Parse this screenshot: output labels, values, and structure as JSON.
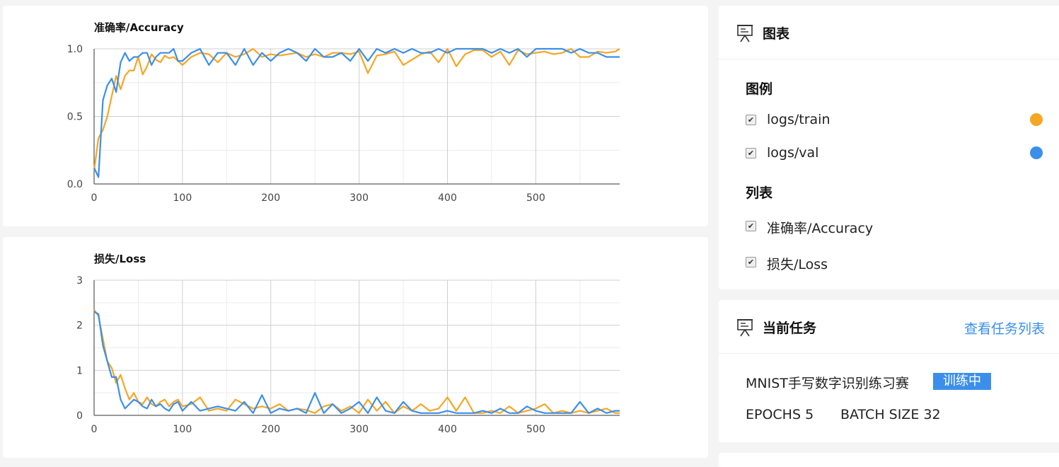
{
  "charts": [
    {
      "id": "accuracy",
      "title": "准确率/Accuracy",
      "type": "line",
      "xlim": [
        0,
        595
      ],
      "ylim": [
        0,
        1
      ],
      "x_ticks": [
        0,
        100,
        200,
        300,
        400,
        500
      ],
      "y_ticks": [
        0.0,
        0.5,
        1.0
      ],
      "y_tick_labels": [
        "0.0",
        "0.5",
        "1.0"
      ],
      "x_tick_labels": [
        "0",
        "100",
        "200",
        "300",
        "400",
        "500"
      ],
      "grid": true,
      "series": [
        {
          "color": "#f5a623",
          "x": [
            0,
            5,
            10,
            15,
            20,
            25,
            30,
            35,
            40,
            45,
            50,
            55,
            60,
            65,
            70,
            75,
            80,
            85,
            90,
            95,
            100,
            110,
            120,
            130,
            140,
            150,
            160,
            170,
            180,
            190,
            200,
            210,
            220,
            230,
            240,
            250,
            260,
            270,
            280,
            290,
            300,
            310,
            320,
            330,
            340,
            350,
            360,
            370,
            380,
            390,
            400,
            410,
            420,
            430,
            440,
            450,
            460,
            470,
            480,
            490,
            500,
            510,
            520,
            530,
            540,
            550,
            560,
            570,
            580,
            590,
            595
          ],
          "y": [
            0.1,
            0.34,
            0.4,
            0.5,
            0.65,
            0.8,
            0.7,
            0.8,
            0.84,
            0.84,
            0.94,
            0.81,
            0.87,
            0.96,
            0.92,
            0.9,
            0.95,
            0.93,
            0.94,
            0.91,
            0.88,
            0.94,
            0.97,
            0.96,
            0.9,
            0.97,
            0.94,
            0.96,
            1.0,
            0.94,
            0.96,
            0.95,
            0.96,
            0.97,
            0.94,
            0.96,
            0.94,
            0.97,
            0.97,
            0.96,
            0.98,
            0.82,
            0.95,
            0.96,
            0.98,
            0.88,
            0.92,
            0.96,
            0.98,
            0.9,
            1.0,
            0.87,
            0.96,
            0.99,
            0.99,
            0.94,
            0.98,
            0.88,
            0.99,
            0.96,
            0.97,
            0.98,
            0.96,
            0.97,
            1.0,
            0.94,
            0.94,
            0.98,
            0.97,
            0.98,
            1.0
          ]
        },
        {
          "color": "#3b8fea",
          "x": [
            0,
            5,
            10,
            15,
            20,
            25,
            30,
            35,
            40,
            45,
            50,
            55,
            60,
            65,
            70,
            75,
            80,
            85,
            90,
            95,
            100,
            110,
            120,
            130,
            140,
            150,
            160,
            170,
            180,
            190,
            200,
            210,
            220,
            230,
            240,
            250,
            260,
            270,
            280,
            290,
            300,
            310,
            320,
            330,
            340,
            350,
            360,
            370,
            380,
            390,
            400,
            410,
            420,
            430,
            440,
            450,
            460,
            470,
            480,
            490,
            500,
            510,
            520,
            530,
            540,
            550,
            560,
            570,
            580,
            590,
            595
          ],
          "y": [
            0.12,
            0.05,
            0.62,
            0.73,
            0.78,
            0.68,
            0.9,
            0.97,
            0.91,
            0.94,
            0.94,
            0.97,
            0.97,
            0.88,
            0.94,
            0.97,
            0.97,
            0.97,
            1.0,
            0.91,
            0.91,
            0.97,
            1.0,
            0.88,
            0.97,
            0.97,
            0.88,
            1.0,
            0.88,
            0.97,
            0.91,
            0.97,
            1.0,
            0.97,
            0.91,
            1.0,
            0.94,
            0.94,
            0.97,
            0.91,
            1.0,
            0.91,
            1.0,
            0.97,
            1.0,
            0.97,
            1.0,
            0.97,
            0.97,
            1.0,
            0.97,
            1.0,
            1.0,
            1.0,
            1.0,
            0.97,
            1.0,
            0.97,
            1.0,
            0.94,
            1.0,
            1.0,
            1.0,
            1.0,
            0.97,
            1.0,
            0.97,
            0.97,
            0.94,
            0.94,
            0.94
          ]
        }
      ]
    },
    {
      "id": "loss",
      "title": "损失/Loss",
      "type": "line",
      "xlim": [
        0,
        595
      ],
      "ylim": [
        0,
        3
      ],
      "x_ticks": [
        0,
        100,
        200,
        300,
        400,
        500
      ],
      "y_ticks": [
        0,
        1,
        2,
        3
      ],
      "y_tick_labels": [
        "0",
        "1",
        "2",
        "3"
      ],
      "x_tick_labels": [
        "0",
        "100",
        "200",
        "300",
        "400",
        "500"
      ],
      "grid": true,
      "series": [
        {
          "color": "#f5a623",
          "x": [
            0,
            5,
            10,
            15,
            20,
            25,
            30,
            35,
            40,
            45,
            50,
            55,
            60,
            65,
            70,
            75,
            80,
            85,
            90,
            95,
            100,
            110,
            120,
            130,
            140,
            150,
            160,
            170,
            180,
            190,
            200,
            210,
            220,
            230,
            240,
            250,
            260,
            270,
            280,
            290,
            300,
            310,
            320,
            330,
            340,
            350,
            360,
            370,
            380,
            390,
            400,
            410,
            420,
            430,
            440,
            450,
            460,
            470,
            480,
            490,
            500,
            510,
            520,
            530,
            540,
            550,
            560,
            570,
            580,
            590,
            595
          ],
          "y": [
            2.35,
            2.2,
            1.7,
            1.2,
            1.05,
            0.72,
            0.9,
            0.6,
            0.35,
            0.5,
            0.3,
            0.25,
            0.4,
            0.25,
            0.2,
            0.3,
            0.35,
            0.2,
            0.3,
            0.35,
            0.2,
            0.25,
            0.4,
            0.1,
            0.15,
            0.1,
            0.35,
            0.25,
            0.15,
            0.2,
            0.15,
            0.25,
            0.1,
            0.15,
            0.12,
            0.05,
            0.2,
            0.25,
            0.1,
            0.2,
            0.05,
            0.35,
            0.1,
            0.3,
            0.05,
            0.2,
            0.1,
            0.25,
            0.1,
            0.15,
            0.4,
            0.1,
            0.4,
            0.05,
            0.05,
            0.1,
            0.05,
            0.2,
            0.05,
            0.1,
            0.15,
            0.25,
            0.05,
            0.1,
            0.05,
            0.1,
            0.05,
            0.1,
            0.15,
            0.05,
            0.05
          ]
        },
        {
          "color": "#3b8fea",
          "x": [
            0,
            5,
            10,
            15,
            20,
            25,
            30,
            35,
            40,
            45,
            50,
            55,
            60,
            65,
            70,
            75,
            80,
            85,
            90,
            95,
            100,
            110,
            120,
            130,
            140,
            150,
            160,
            170,
            180,
            190,
            200,
            210,
            220,
            230,
            240,
            250,
            260,
            270,
            280,
            290,
            300,
            310,
            320,
            330,
            340,
            350,
            360,
            370,
            380,
            390,
            400,
            410,
            420,
            430,
            440,
            450,
            460,
            470,
            480,
            490,
            500,
            510,
            520,
            530,
            540,
            550,
            560,
            570,
            580,
            590,
            595
          ],
          "y": [
            2.3,
            2.25,
            1.55,
            1.2,
            0.85,
            0.85,
            0.35,
            0.15,
            0.25,
            0.35,
            0.3,
            0.2,
            0.15,
            0.35,
            0.2,
            0.25,
            0.15,
            0.1,
            0.25,
            0.3,
            0.1,
            0.3,
            0.1,
            0.15,
            0.2,
            0.15,
            0.1,
            0.3,
            0.05,
            0.45,
            0.05,
            0.15,
            0.1,
            0.15,
            0.05,
            0.5,
            0.05,
            0.25,
            0.05,
            0.15,
            0.3,
            0.05,
            0.4,
            0.1,
            0.05,
            0.3,
            0.1,
            0.05,
            0.05,
            0.05,
            0.1,
            0.05,
            0.05,
            0.05,
            0.1,
            0.05,
            0.15,
            0.05,
            0.05,
            0.2,
            0.1,
            0.05,
            0.05,
            0.05,
            0.05,
            0.3,
            0.05,
            0.15,
            0.05,
            0.1,
            0.1
          ]
        }
      ]
    }
  ],
  "chart_panel": {
    "title": "图表",
    "legend_title": "图例",
    "legend_items": [
      {
        "label": "logs/train",
        "color": "#f5a623",
        "checked": true
      },
      {
        "label": "logs/val",
        "color": "#3b8fea",
        "checked": true
      }
    ],
    "list_title": "列表",
    "list_items": [
      {
        "label": "准确率/Accuracy",
        "checked": true
      },
      {
        "label": "损失/Loss",
        "checked": true
      }
    ],
    "check_glyph": "✔"
  },
  "task_panel": {
    "title": "当前任务",
    "link": "查看任务列表",
    "task_name": "MNIST手写数字识别练习赛",
    "status": "训练中",
    "epochs": "EPOCHS 5",
    "batch_size": "BATCH SIZE 32"
  },
  "colors": {
    "train": "#f5a623",
    "val": "#3b8fea",
    "link": "#3b8fea"
  },
  "icons": {
    "panel": "presentation-board-icon"
  }
}
